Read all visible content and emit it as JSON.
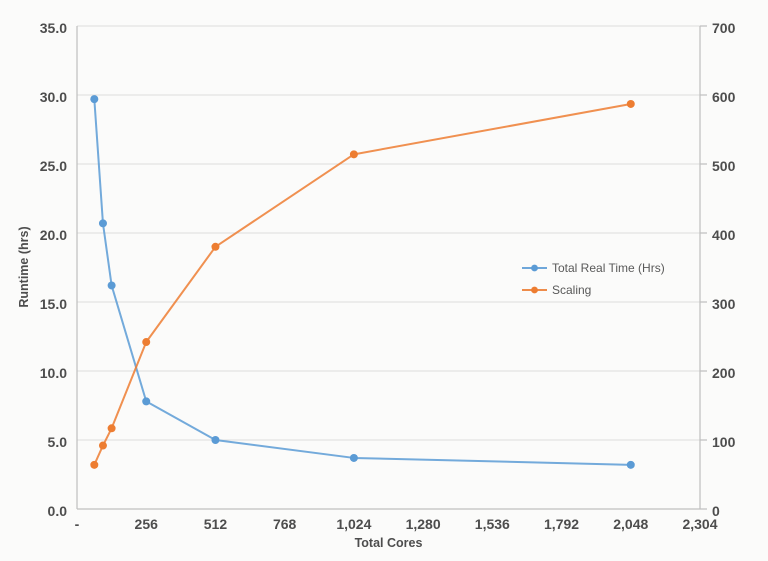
{
  "chart_data": {
    "type": "line",
    "title": "",
    "xlabel": "Total Cores",
    "ylabel": "Runtime (hrs)",
    "x": [
      64,
      96,
      128,
      256,
      512,
      1024,
      2048
    ],
    "series": [
      {
        "name": "Total Real Time (Hrs)",
        "axis": "left",
        "color": "#5B9BD5",
        "values": [
          29.7,
          20.7,
          16.2,
          7.8,
          5.0,
          3.7,
          3.2
        ]
      },
      {
        "name": "Scaling",
        "axis": "right",
        "color": "#ED7D31",
        "values": [
          64,
          92,
          117,
          242,
          380,
          514,
          587
        ]
      }
    ],
    "x_axis": {
      "min": 0,
      "max": 2304,
      "tick_values": [
        0,
        256,
        512,
        768,
        1024,
        1280,
        1536,
        1792,
        2048,
        2304
      ],
      "tick_labels": [
        "-",
        "256",
        "512",
        "768",
        "1,024",
        "1,280",
        "1,536",
        "1,792",
        "2,048",
        "2,304"
      ]
    },
    "left_axis": {
      "min": 0,
      "max": 35,
      "step": 5,
      "tick_labels": [
        "0.0",
        "5.0",
        "10.0",
        "15.0",
        "20.0",
        "25.0",
        "30.0",
        "35.0"
      ]
    },
    "right_axis": {
      "min": 0,
      "max": 700,
      "step": 100,
      "tick_labels": [
        "0",
        "100",
        "200",
        "300",
        "400",
        "500",
        "600",
        "700"
      ]
    },
    "grid": "horizontal",
    "legend": {
      "position": "inside-right"
    },
    "colors": {
      "grid": "#dcdcdc",
      "axis_line": "#bfbfbf",
      "text": "#4d4d4d"
    }
  }
}
